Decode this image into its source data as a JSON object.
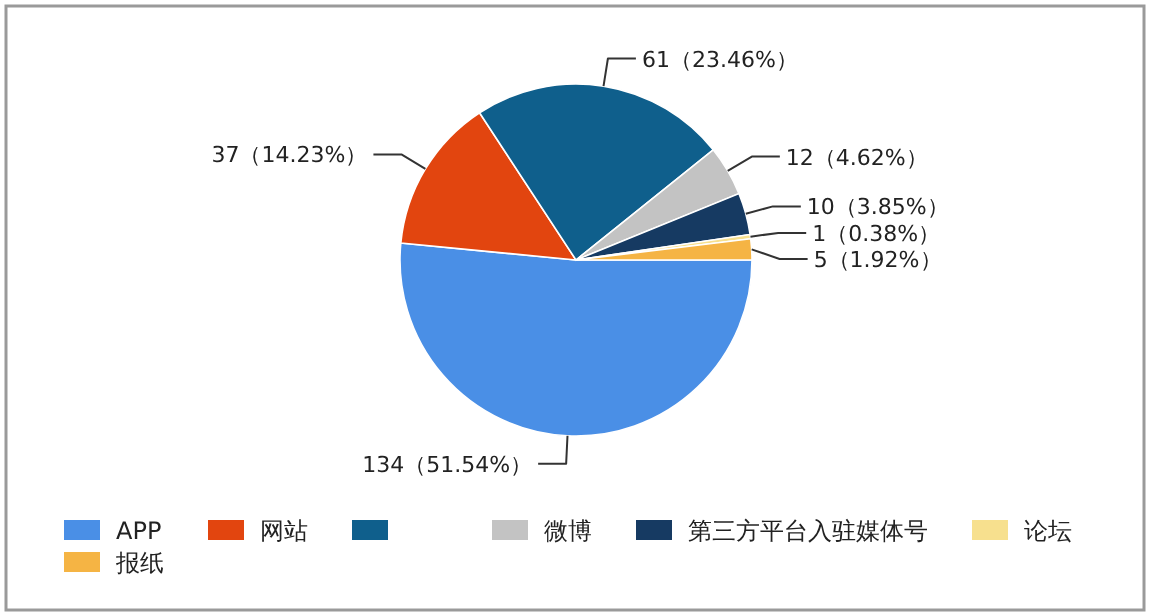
{
  "chart_data": {
    "type": "pie",
    "categories": [
      "APP",
      "网站",
      null,
      "微博",
      "第三方平台入驻媒体号",
      "论坛",
      "报纸"
    ],
    "values": [
      134,
      37,
      61,
      12,
      10,
      1,
      5
    ],
    "colors": [
      "#4a8fe6",
      "#e2450f",
      "#0f5f8c",
      "#c3c3c3",
      "#163a62",
      "#f7e08e",
      "#f5b444"
    ],
    "value_labels": [
      "134（51.54%）",
      "37（14.23%）",
      "61（23.46%）",
      "12（4.62%）",
      "10（3.85%）",
      "1（0.38%）",
      "5（1.92%）"
    ],
    "legend": "bottom"
  }
}
